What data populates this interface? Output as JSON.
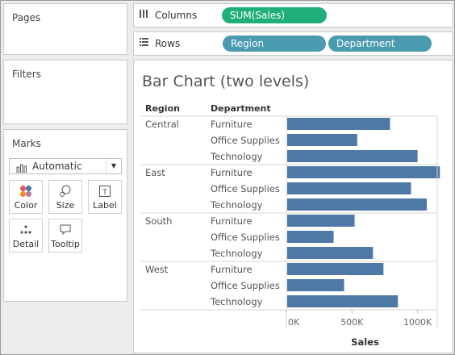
{
  "panels": {
    "pages_title": "Pages",
    "filters_title": "Filters",
    "marks_title": "Marks"
  },
  "shelves": {
    "columns_label": "Columns",
    "rows_label": "Rows",
    "columns_pills": [
      "SUM(Sales)"
    ],
    "rows_pills": [
      "Region",
      "Department"
    ]
  },
  "marks": {
    "type": "Automatic",
    "cards": [
      "Color",
      "Size",
      "Label",
      "Detail",
      "Tooltip"
    ]
  },
  "colors": {
    "bar": "#4e79a7",
    "measure_pill": "#1fb07a",
    "dimension_pill": "#4a9bb0"
  },
  "chart_data": {
    "type": "bar",
    "title": "Bar Chart (two levels)",
    "header_region": "Region",
    "header_department": "Department",
    "xlabel": "Sales",
    "xlim": [
      0,
      1150000
    ],
    "ticks": [
      0,
      500000,
      1000000
    ],
    "tick_labels": [
      "0K",
      "500K",
      "1000K"
    ],
    "groups": [
      {
        "region": "Central",
        "rows": [
          {
            "department": "Furniture",
            "value": 790000
          },
          {
            "department": "Office Supplies",
            "value": 540000
          },
          {
            "department": "Technology",
            "value": 1000000
          }
        ]
      },
      {
        "region": "East",
        "rows": [
          {
            "department": "Furniture",
            "value": 1170000
          },
          {
            "department": "Office Supplies",
            "value": 950000
          },
          {
            "department": "Technology",
            "value": 1070000
          }
        ]
      },
      {
        "region": "South",
        "rows": [
          {
            "department": "Furniture",
            "value": 520000
          },
          {
            "department": "Office Supplies",
            "value": 360000
          },
          {
            "department": "Technology",
            "value": 660000
          }
        ]
      },
      {
        "region": "West",
        "rows": [
          {
            "department": "Furniture",
            "value": 740000
          },
          {
            "department": "Office Supplies",
            "value": 440000
          },
          {
            "department": "Technology",
            "value": 850000
          }
        ]
      }
    ]
  }
}
